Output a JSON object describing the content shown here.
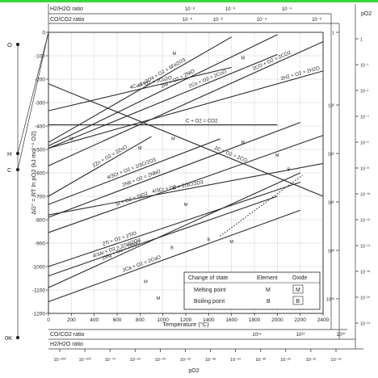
{
  "chart_data": {
    "type": "line",
    "title": "",
    "xlabel": "Temperature (°C)",
    "ylabel": "ΔG° = RT ln pO2 (kJ mol⁻¹ O2)",
    "xlim": [
      0,
      2400
    ],
    "ylim": [
      -1200,
      0
    ],
    "x_ticks": [
      0,
      200,
      400,
      600,
      800,
      1000,
      1200,
      1400,
      1600,
      1800,
      2000,
      2200,
      2400
    ],
    "y_ticks": [
      0,
      -100,
      -200,
      -300,
      -400,
      -500,
      -600,
      -700,
      -800,
      -900,
      -1000,
      -1100,
      -1200
    ],
    "grid": true,
    "series": [
      {
        "name": "4Cu + O2 = 2Cu2O",
        "x": [
          0,
          1600
        ],
        "y": [
          -335,
          -150
        ]
      },
      {
        "name": "4Fe3O4 + O2 = 6Fe2O3",
        "x": [
          0,
          1600
        ],
        "y": [
          -470,
          -20
        ]
      },
      {
        "name": "2Ni + O2 = 2NiO",
        "x": [
          0,
          2000
        ],
        "y": [
          -485,
          -10
        ]
      },
      {
        "name": "2Co + O2 = 2CoO",
        "x": [
          0,
          2000
        ],
        "y": [
          -495,
          -95
        ]
      },
      {
        "name": "2CO + O2 = 2CO2",
        "x": [
          0,
          2400
        ],
        "y": [
          -570,
          -40
        ]
      },
      {
        "name": "2H2 + O2 = 2H2O",
        "x": [
          0,
          2400
        ],
        "y": [
          -495,
          -165
        ]
      },
      {
        "name": "C + O2 = CO2",
        "x": [
          0,
          2000
        ],
        "y": [
          -395,
          -395
        ]
      },
      {
        "name": "2C + O2 = 2CO",
        "x": [
          0,
          2400
        ],
        "y": [
          -220,
          -700
        ]
      },
      {
        "name": "2Zn + O2 = 2ZnO",
        "x": [
          0,
          900
        ],
        "y": [
          -700,
          -445
        ]
      },
      {
        "name": "4/3Cr + O2 = 2/3Cr2O3",
        "x": [
          0,
          1500
        ],
        "y": [
          -735,
          -455
        ]
      },
      {
        "name": "2Nb + O2 = 2NbO",
        "x": [
          0,
          2200
        ],
        "y": [
          -790,
          -385
        ]
      },
      {
        "name": "Si + O2 = SiO2",
        "x": [
          0,
          2400
        ],
        "y": [
          -855,
          -440
        ]
      },
      {
        "name": "4/3Cr + O2 = 2/3Cr2O3",
        "x": [
          0,
          2400
        ],
        "y": [
          -780,
          -560
        ]
      },
      {
        "name": "2Ti + O2 = 2TiO",
        "x": [
          0,
          2200
        ],
        "y": [
          -1000,
          -640
        ]
      },
      {
        "name": "4/3Al + O2 = 2/3Al2O3",
        "x": [
          0,
          2000
        ],
        "y": [
          -1040,
          -700
        ]
      },
      {
        "name": "2Mg + O2 = 2MgO",
        "x": [
          0,
          2200
        ],
        "y": [
          -1090,
          -600
        ]
      },
      {
        "name": "2Ca + O2 = 2CaO",
        "x": [
          0,
          2200
        ],
        "y": [
          -1150,
          -760
        ]
      }
    ],
    "markers": [
      {
        "x": 1100,
        "y": -75,
        "text": "M"
      },
      {
        "x": 1090,
        "y": -440,
        "text": "M"
      },
      {
        "x": 1700,
        "y": -95,
        "text": "M"
      },
      {
        "x": 200,
        "y": -440,
        "text": "M"
      },
      {
        "x": 800,
        "y": -480,
        "text": "M"
      },
      {
        "x": 1100,
        "y": -650,
        "text": "B"
      },
      {
        "x": 1700,
        "y": -455,
        "text": "M"
      },
      {
        "x": 2000,
        "y": -510,
        "text": "M"
      },
      {
        "x": 2100,
        "y": -570,
        "text": "B"
      },
      {
        "x": 1200,
        "y": -720,
        "text": "M"
      },
      {
        "x": 1080,
        "y": -905,
        "text": "B"
      },
      {
        "x": 1400,
        "y": -870,
        "text": "B"
      },
      {
        "x": 1600,
        "y": -880,
        "text": "M"
      },
      {
        "x": 850,
        "y": -1050,
        "text": "M"
      },
      {
        "x": 960,
        "y": -1120,
        "text": "M"
      }
    ],
    "legend": {
      "headers": [
        "Change of state",
        "Element",
        "Oxide"
      ],
      "rows": [
        {
          "label": "Melting point",
          "element": "M",
          "oxide": "M"
        },
        {
          "label": "Boiling point",
          "element": "B",
          "oxide": "B"
        }
      ],
      "position": "bottom-right"
    },
    "top_scales": [
      {
        "label": "H2/H2O ratio",
        "ticks": [
          "10⁻⁸",
          "10⁻⁶",
          "10⁻⁴"
        ]
      },
      {
        "label": "CO/CO2 ratio",
        "ticks": [
          "10⁻⁸",
          "10⁻⁶",
          "10⁻⁴",
          "10⁻²"
        ]
      }
    ],
    "bottom_scales": [
      {
        "label": "CO/CO2 ratio",
        "ticks": [
          "10¹⁴",
          "10¹²",
          "10¹⁰"
        ]
      },
      {
        "label": "H2/H2O ratio",
        "ticks": []
      }
    ],
    "po2_label": "pO2",
    "po2_ticks": [
      "10⁻²⁰⁰",
      "10⁻¹⁰⁰",
      "10⁻⁷⁰",
      "10⁻⁶⁰",
      "10⁻⁵⁰",
      "10⁻⁴²",
      "10⁻³⁸",
      "10⁻³⁴",
      "10⁻³⁰",
      "10⁻²⁶",
      "10⁻²²",
      "10⁻¹⁸"
    ],
    "right_scale_ticks": [
      "1",
      "10²",
      "10⁴",
      "10⁶",
      "10⁸",
      "10¹⁰"
    ],
    "right_po2_ticks": [
      "1",
      "10⁻¹",
      "10⁻²",
      "10⁻⁴",
      "10⁻⁶",
      "10⁻⁸",
      "10⁻¹⁰",
      "10⁻¹²",
      "10⁻¹⁴",
      "10⁻¹⁶",
      "10⁻²⁰",
      "10⁻²⁴"
    ],
    "left_points": [
      {
        "label": "O",
        "y": 0
      },
      {
        "label": "H",
        "y": -520
      },
      {
        "label": "C",
        "y": -580
      },
      {
        "label": "0K",
        "y": -1400
      }
    ]
  }
}
